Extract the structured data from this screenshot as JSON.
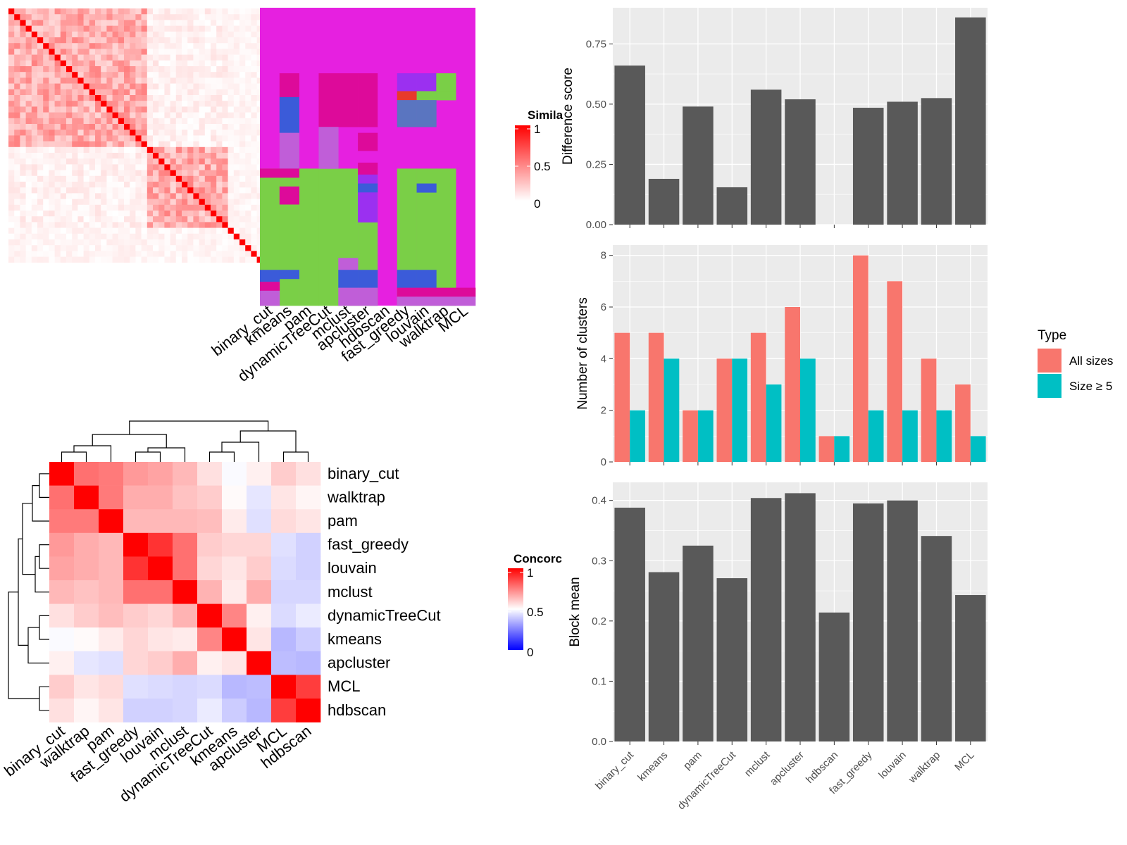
{
  "panels": {
    "similarity_legend": {
      "title": "Simila",
      "ticks": [
        "1",
        "0.5",
        "0"
      ]
    },
    "concordance_legend": {
      "title": "Concorc",
      "ticks": [
        "1",
        "0.5",
        "0"
      ]
    },
    "type_legend": {
      "title": "Type",
      "items": [
        "All sizes",
        "Size ≥ 5"
      ]
    }
  },
  "colors": {
    "heat_high": "#ff0000",
    "heat_low": "#ffffff",
    "conc_low": "#0000ff",
    "membership_magenta": "#e620e0",
    "membership_green": "#7acf47",
    "bar_gray": "#595959",
    "all_sizes": "#f8766d",
    "size_ge5": "#00bfc4",
    "panel_bg": "#ebebeb"
  },
  "chart_data": [
    {
      "type": "heatmap",
      "id": "similarity-heatmap",
      "description": "Term similarity matrix (values not labeled)",
      "legend_title": "Simila",
      "range": [
        0,
        1
      ]
    },
    {
      "type": "heatmap",
      "id": "cluster-membership",
      "columns": [
        "binary_cut",
        "kmeans",
        "pam",
        "dynamicTreeCut",
        "mclust",
        "apcluster",
        "hdbscan",
        "fast_greedy",
        "louvain",
        "walktrap",
        "MCL"
      ]
    },
    {
      "type": "heatmap",
      "id": "concordance-heatmap",
      "legend_title": "Concorc",
      "rows": [
        "binary_cut",
        "walktrap",
        "pam",
        "fast_greedy",
        "louvain",
        "mclust",
        "dynamicTreeCut",
        "kmeans",
        "apcluster",
        "MCL",
        "hdbscan"
      ],
      "columns": [
        "binary_cut",
        "walktrap",
        "pam",
        "fast_greedy",
        "louvain",
        "mclust",
        "dynamicTreeCut",
        "kmeans",
        "apcluster",
        "MCL",
        "hdbscan"
      ],
      "values": [
        [
          1.0,
          0.78,
          0.76,
          0.7,
          0.68,
          0.64,
          0.56,
          0.49,
          0.53,
          0.6,
          0.56
        ],
        [
          0.78,
          1.0,
          0.76,
          0.66,
          0.66,
          0.62,
          0.6,
          0.51,
          0.45,
          0.55,
          0.52
        ],
        [
          0.76,
          0.76,
          1.0,
          0.64,
          0.64,
          0.64,
          0.63,
          0.54,
          0.44,
          0.57,
          0.55
        ],
        [
          0.7,
          0.66,
          0.64,
          1.0,
          0.9,
          0.78,
          0.6,
          0.58,
          0.58,
          0.44,
          0.41
        ],
        [
          0.68,
          0.66,
          0.64,
          0.9,
          1.0,
          0.78,
          0.58,
          0.55,
          0.6,
          0.43,
          0.41
        ],
        [
          0.64,
          0.62,
          0.64,
          0.78,
          0.78,
          1.0,
          0.65,
          0.54,
          0.66,
          0.42,
          0.42
        ],
        [
          0.56,
          0.6,
          0.63,
          0.6,
          0.58,
          0.65,
          1.0,
          0.74,
          0.53,
          0.43,
          0.46
        ],
        [
          0.49,
          0.51,
          0.54,
          0.58,
          0.55,
          0.54,
          0.74,
          1.0,
          0.55,
          0.36,
          0.4
        ],
        [
          0.53,
          0.45,
          0.44,
          0.58,
          0.6,
          0.66,
          0.53,
          0.55,
          1.0,
          0.37,
          0.36
        ],
        [
          0.6,
          0.55,
          0.57,
          0.44,
          0.43,
          0.42,
          0.43,
          0.36,
          0.37,
          1.0,
          0.88
        ],
        [
          0.56,
          0.52,
          0.55,
          0.41,
          0.41,
          0.42,
          0.46,
          0.4,
          0.36,
          0.88,
          1.0
        ]
      ]
    },
    {
      "type": "bar",
      "id": "difference-score",
      "categories": [
        "binary_cut",
        "kmeans",
        "pam",
        "dynamicTreeCut",
        "mclust",
        "apcluster",
        "hdbscan",
        "fast_greedy",
        "louvain",
        "walktrap",
        "MCL"
      ],
      "values": [
        0.66,
        0.19,
        0.49,
        0.155,
        0.56,
        0.52,
        0.0,
        0.485,
        0.51,
        0.525,
        0.86
      ],
      "ylabel": "Difference score",
      "ylim": [
        0,
        0.9
      ],
      "yticks": [
        "0.00",
        "0.25",
        "0.50",
        "0.75"
      ],
      "grid": true
    },
    {
      "type": "bar",
      "id": "number-of-clusters",
      "categories": [
        "binary_cut",
        "kmeans",
        "pam",
        "dynamicTreeCut",
        "mclust",
        "apcluster",
        "hdbscan",
        "fast_greedy",
        "louvain",
        "walktrap",
        "MCL"
      ],
      "series": [
        {
          "name": "All sizes",
          "values": [
            5,
            5,
            2,
            4,
            5,
            6,
            1,
            8,
            7,
            4,
            3
          ]
        },
        {
          "name": "Size ≥ 5",
          "values": [
            2,
            4,
            2,
            4,
            3,
            4,
            1,
            2,
            2,
            2,
            1
          ]
        }
      ],
      "ylabel": "Number of clusters",
      "ylim": [
        0,
        8.4
      ],
      "yticks": [
        "0",
        "2",
        "4",
        "6",
        "8"
      ],
      "legend": "right",
      "grid": true
    },
    {
      "type": "bar",
      "id": "block-mean",
      "categories": [
        "binary_cut",
        "kmeans",
        "pam",
        "dynamicTreeCut",
        "mclust",
        "apcluster",
        "hdbscan",
        "fast_greedy",
        "louvain",
        "walktrap",
        "MCL"
      ],
      "values": [
        0.388,
        0.281,
        0.325,
        0.271,
        0.404,
        0.412,
        0.214,
        0.395,
        0.4,
        0.341,
        0.243
      ],
      "ylabel": "Block mean",
      "ylim": [
        0,
        0.43
      ],
      "yticks": [
        "0.0",
        "0.1",
        "0.2",
        "0.3",
        "0.4"
      ],
      "grid": true
    }
  ]
}
